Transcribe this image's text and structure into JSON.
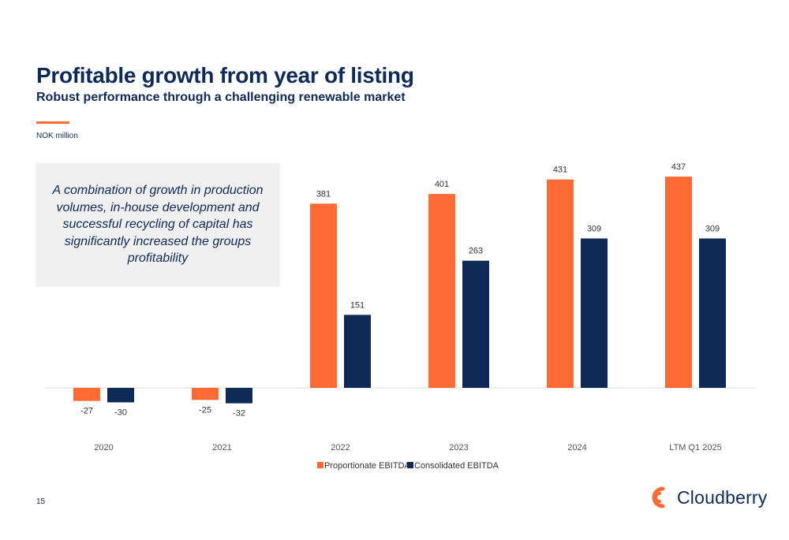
{
  "header": {
    "title": "Profitable growth from year of listing",
    "subtitle": "Robust performance through a challenging renewable market",
    "unit": "NOK million"
  },
  "callout": {
    "text": "A combination of growth in production volumes, in-house development and successful recycling of capital has significantly increased the groups profitability"
  },
  "chart_data": {
    "type": "bar",
    "categories": [
      "2020",
      "2021",
      "2022",
      "2023",
      "2024",
      "LTM Q1 2025"
    ],
    "series": [
      {
        "name": "Proportionate EBITDA",
        "values": [
          -27,
          -25,
          381,
          401,
          431,
          437
        ],
        "color": "#ff6b35"
      },
      {
        "name": "Consolidated EBITDA",
        "values": [
          -30,
          -32,
          151,
          263,
          309,
          309
        ],
        "color": "#0f2a57"
      }
    ],
    "ylim": [
      -40,
      437
    ],
    "legend_position": "bottom-center",
    "grid": false
  },
  "footer": {
    "page_number": "15",
    "logo_text": "Cloudberry"
  },
  "colors": {
    "accent": "#ff6b35",
    "navy": "#0f2a57",
    "callout_bg": "#f0f0f0"
  }
}
